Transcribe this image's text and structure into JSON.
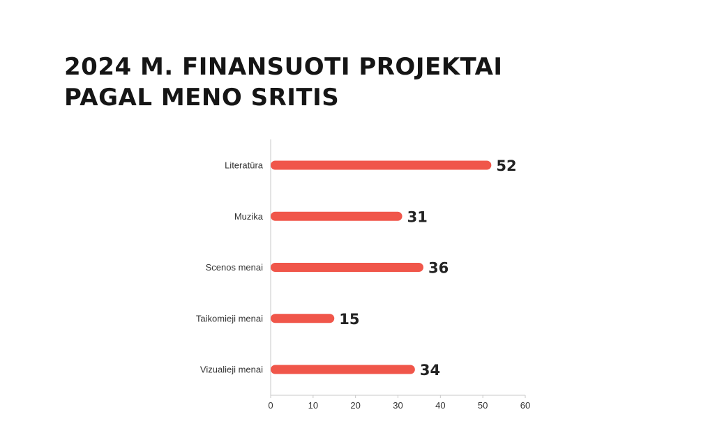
{
  "title": {
    "line1": "2024 M. FINANSUOTI PROJEKTAI",
    "line2": "PAGAL MENO SRITIS"
  },
  "colors": {
    "bar": "#f0564a",
    "axis": "#c8c8c8",
    "text": "#222222"
  },
  "chart_data": {
    "type": "bar",
    "orientation": "horizontal",
    "categories": [
      "Literatūra",
      "Muzika",
      "Scenos menai",
      "Taikomieji menai",
      "Vizualieji menai"
    ],
    "values": [
      52,
      31,
      36,
      15,
      34
    ],
    "xlim": [
      0,
      60
    ],
    "xticks": [
      0,
      10,
      20,
      30,
      40,
      50,
      60
    ],
    "grid": false,
    "legend": "none",
    "data_labels": true
  }
}
